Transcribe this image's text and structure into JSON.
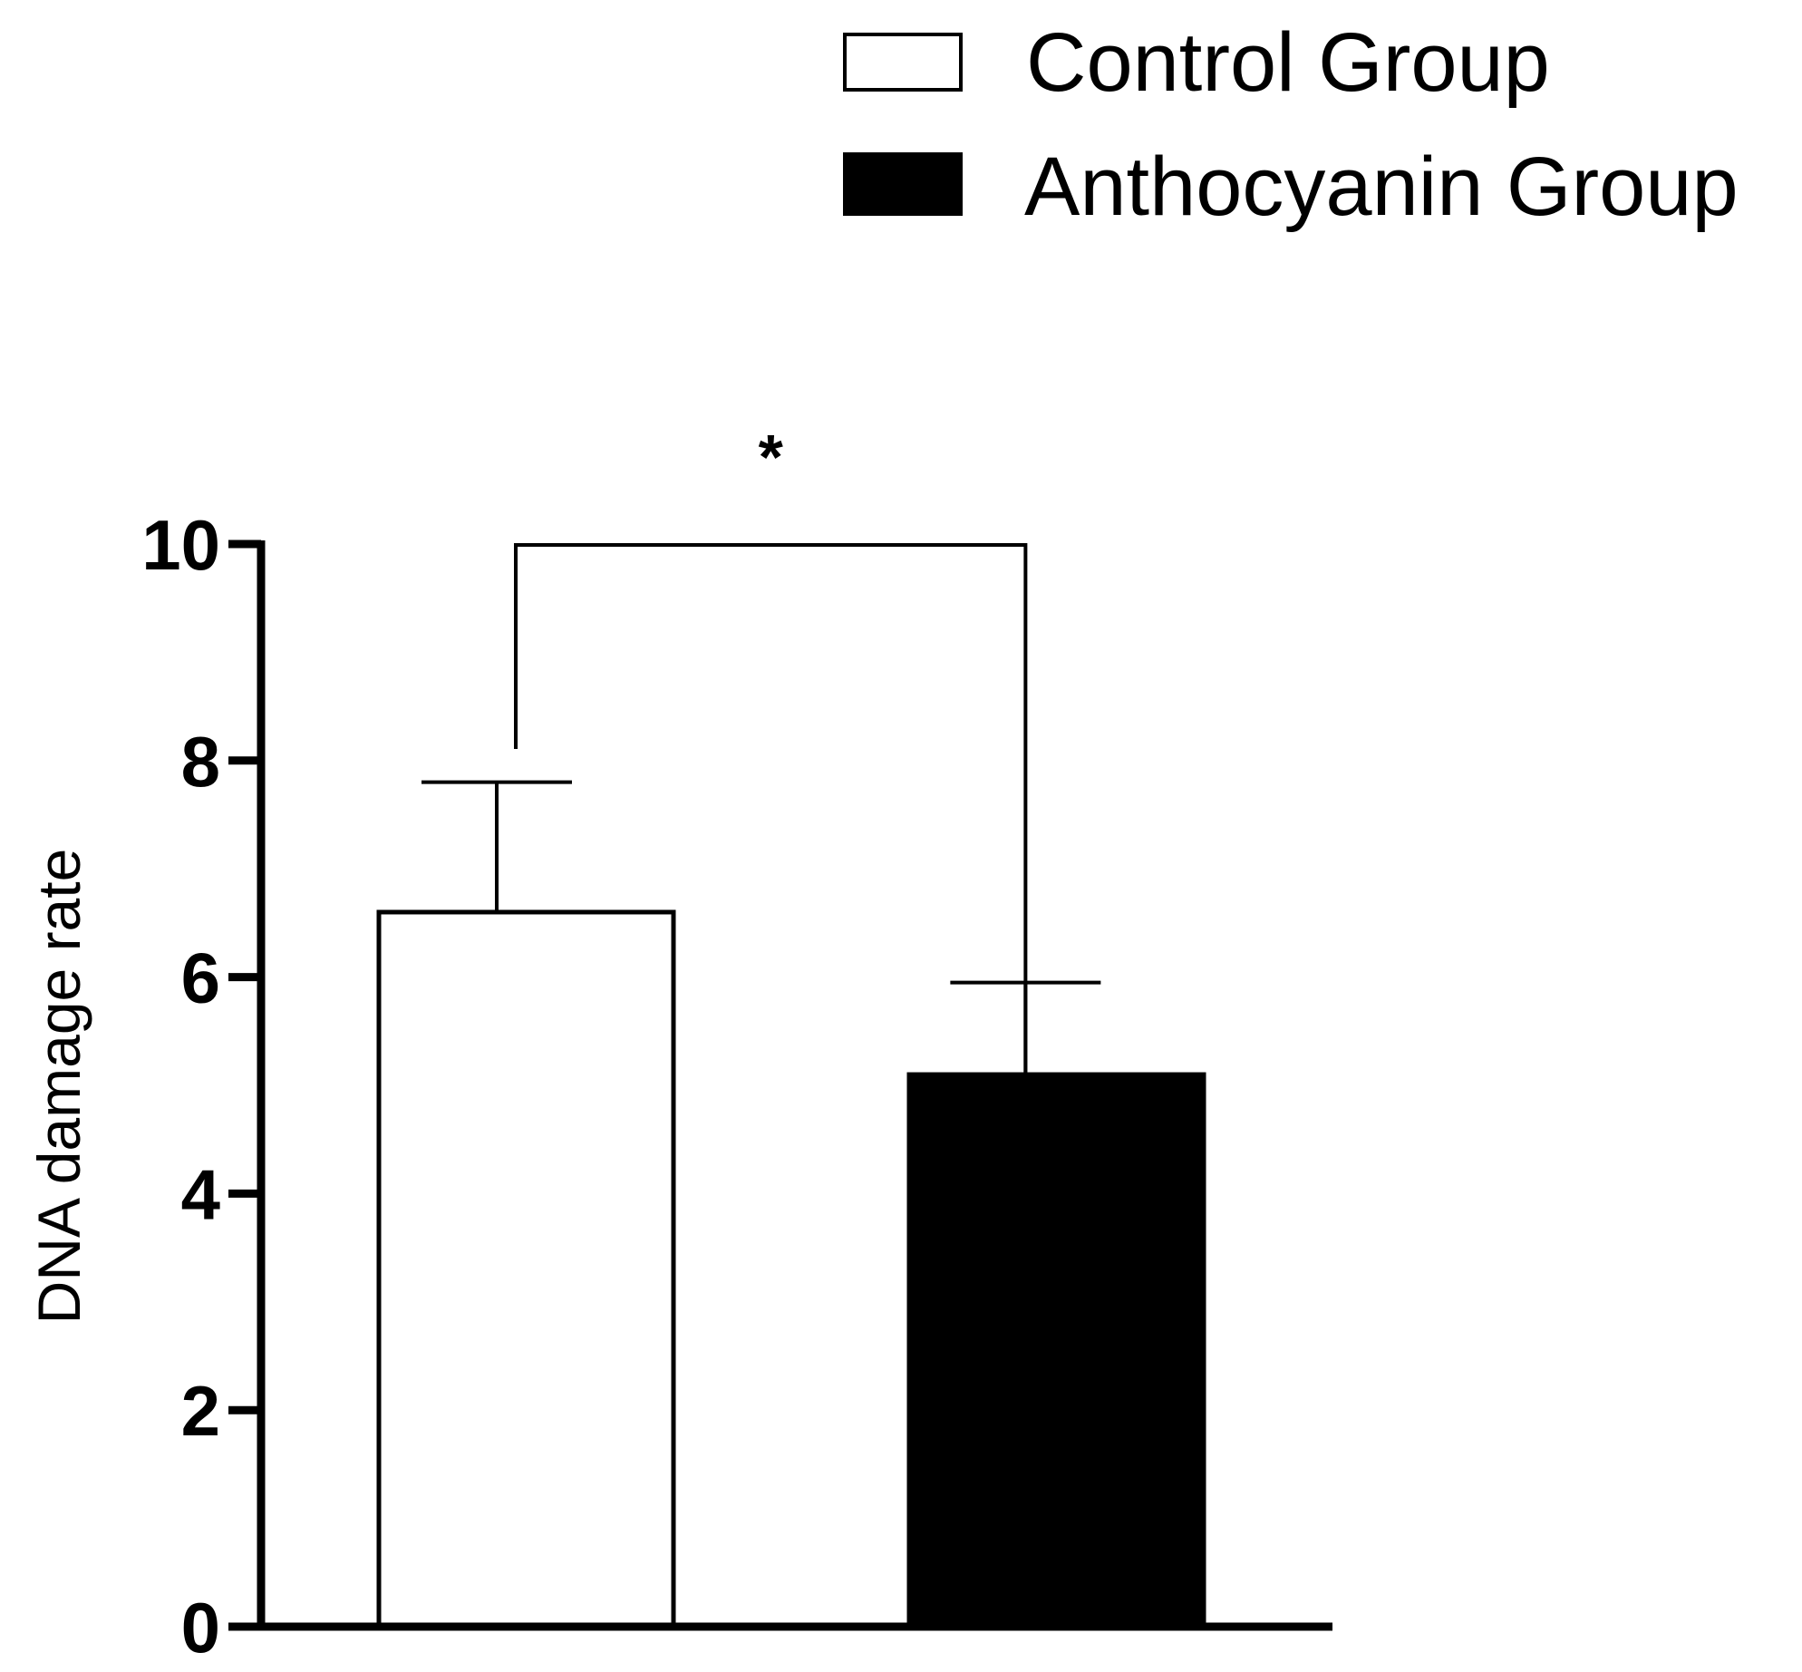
{
  "chart_data": {
    "type": "bar",
    "categories": [
      "Control Group",
      "Anthocyanin Group"
    ],
    "values": [
      6.6,
      5.1
    ],
    "errors": [
      1.2,
      0.85
    ],
    "colors": [
      "#ffffff",
      "#000000"
    ],
    "edge_color": "#000000",
    "ylabel": "DNA damage rate",
    "xlabel": "",
    "ylim": [
      0,
      10
    ],
    "yticks": [
      0,
      2,
      4,
      6,
      8,
      10
    ],
    "ytick_labels": [
      "0",
      "2",
      "4",
      "6",
      "8",
      "10"
    ],
    "legend": [
      {
        "label": "Control Group",
        "color": "#ffffff"
      },
      {
        "label": "Anthocyanin Group",
        "color": "#000000"
      }
    ],
    "legend_position": "top-right",
    "significance": {
      "between": [
        0,
        1
      ],
      "label": "*"
    }
  }
}
